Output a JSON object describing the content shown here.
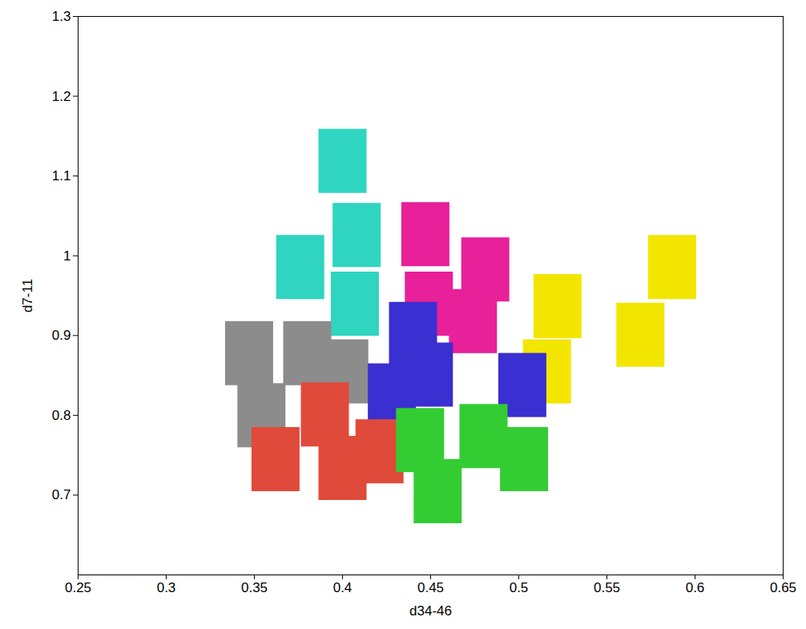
{
  "chart_data": {
    "type": "scatter",
    "x_label": "d34-46",
    "y_label": "d7-11",
    "x": [
      0.4,
      0.408,
      0.376,
      0.407,
      0.447,
      0.481,
      0.449,
      0.474,
      0.587,
      0.522,
      0.569,
      0.516,
      0.347,
      0.38,
      0.401,
      0.354,
      0.44,
      0.449,
      0.428,
      0.502,
      0.39,
      0.362,
      0.4,
      0.421,
      0.444,
      0.48,
      0.503,
      0.454
    ],
    "y": [
      1.119,
      1.026,
      0.986,
      0.94,
      1.027,
      0.983,
      0.94,
      0.918,
      0.986,
      0.937,
      0.901,
      0.855,
      0.878,
      0.878,
      0.855,
      0.8,
      0.902,
      0.851,
      0.825,
      0.838,
      0.801,
      0.745,
      0.734,
      0.755,
      0.769,
      0.774,
      0.745,
      0.705
    ],
    "colors": [
      "#2fd5c0",
      "#2fd5c0",
      "#2fd5c0",
      "#2fd5c0",
      "#e8209a",
      "#e8209a",
      "#e8209a",
      "#e8209a",
      "#f2e600",
      "#f2e600",
      "#f2e600",
      "#f2e600",
      "#8c8c8c",
      "#8c8c8c",
      "#8c8c8c",
      "#8c8c8c",
      "#3a2fd0",
      "#3a2fd0",
      "#3a2fd0",
      "#3a2fd0",
      "#e04a3a",
      "#e04a3a",
      "#e04a3a",
      "#e04a3a",
      "#33cc33",
      "#33cc33",
      "#33cc33",
      "#33cc33"
    ],
    "marker": "square",
    "xlim": [
      0.25,
      0.65
    ],
    "ylim": [
      0.6,
      1.3
    ],
    "xticks": [
      0.25,
      0.3,
      0.35,
      0.4,
      0.45,
      0.5,
      0.55,
      0.6,
      0.65
    ],
    "yticks": [
      0.7,
      0.8,
      0.9,
      1,
      1.1,
      1.2,
      1.3
    ],
    "grid": false
  }
}
